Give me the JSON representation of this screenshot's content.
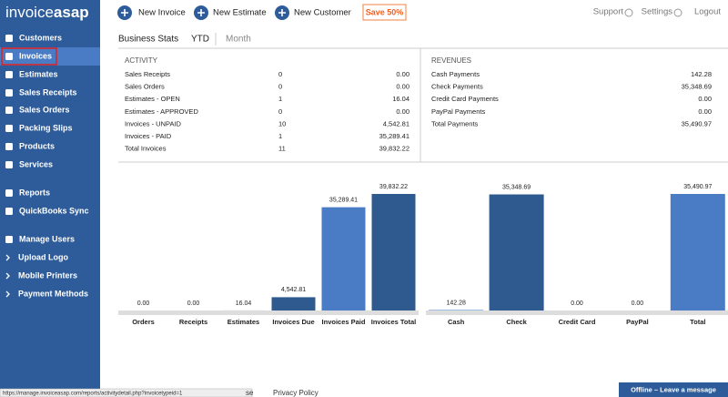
{
  "logo": {
    "part1": "invoice",
    "part2": "asap"
  },
  "sidebar": {
    "items": [
      "Customers",
      "Invoices",
      "Estimates",
      "Sales Receipts",
      "Sales Orders",
      "Packing Slips",
      "Products",
      "Services",
      "Reports",
      "QuickBooks Sync",
      "Manage Users",
      "Upload Logo",
      "Mobile Printers",
      "Payment Methods"
    ],
    "active_index": 1
  },
  "toolbar": {
    "actions": [
      "New Invoice",
      "New Estimate",
      "New Customer"
    ],
    "promo": "Save 50%",
    "links": [
      "Support",
      "Settings",
      "Logout"
    ]
  },
  "tabs": [
    "Business Stats",
    "YTD",
    "Month"
  ],
  "activity": {
    "title": "ACTIVITY",
    "rows": [
      [
        "Sales Receipts",
        "0",
        "0.00"
      ],
      [
        "Sales Orders",
        "0",
        "0.00"
      ],
      [
        "Estimates - OPEN",
        "1",
        "16.04"
      ],
      [
        "Estimates - APPROVED",
        "0",
        "0.00"
      ],
      [
        "Invoices - UNPAID",
        "10",
        "4,542.81"
      ],
      [
        "Invoices - PAID",
        "1",
        "35,289.41"
      ],
      [
        "Total Invoices",
        "11",
        "39,832.22"
      ]
    ]
  },
  "revenues": {
    "title": "REVENUES",
    "rows": [
      [
        "Cash Payments",
        "142.28"
      ],
      [
        "Check Payments",
        "35,348.69"
      ],
      [
        "Credit Card Payments",
        "0.00"
      ],
      [
        "PayPal Payments",
        "0.00"
      ],
      [
        "Total Payments",
        "35,490.97"
      ]
    ]
  },
  "chart_data": [
    {
      "type": "bar",
      "categories": [
        "Orders",
        "Receipts",
        "Estimates",
        "Invoices Due",
        "Invoices Paid",
        "Invoices Total"
      ],
      "values": [
        0,
        0,
        16.04,
        4542.81,
        35289.41,
        39832.22
      ],
      "value_labels": [
        "0.00",
        "0.00",
        "16.04",
        "4,542.81",
        "35,289.41",
        "39,832.22"
      ],
      "colors": [
        "#2f5a8f",
        "#2f5a8f",
        "#2f5a8f",
        "#2f5a8f",
        "#4a7cc6",
        "#2f5a8f"
      ]
    },
    {
      "type": "bar",
      "categories": [
        "Cash",
        "Check",
        "Credit Card",
        "PayPal",
        "Total"
      ],
      "values": [
        142.28,
        35348.69,
        0,
        0,
        35490.97
      ],
      "value_labels": [
        "142.28",
        "35,348.69",
        "0.00",
        "0.00",
        "35,490.97"
      ],
      "colors": [
        "#4a7cc6",
        "#2f5a8f",
        "#2f5a8f",
        "#2f5a8f",
        "#4a7cc6"
      ]
    }
  ],
  "footer": {
    "status_url": "https://manage.invoiceasap.com/reports/activitydetail.php?invoicetypeid=1",
    "partial": "se",
    "privacy": "Privacy Policy",
    "chat": "Offline – Leave a message"
  }
}
